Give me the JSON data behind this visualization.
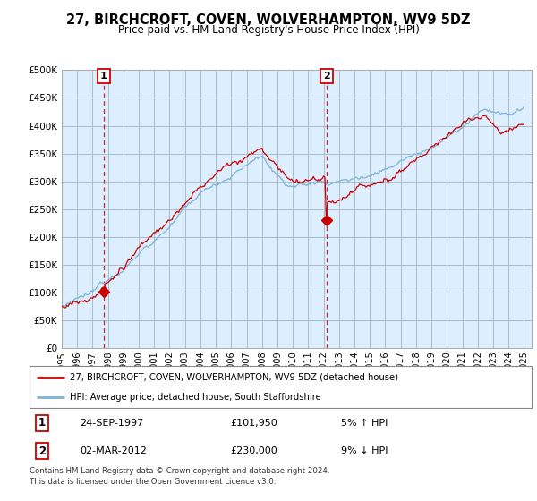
{
  "title": "27, BIRCHCROFT, COVEN, WOLVERHAMPTON, WV9 5DZ",
  "subtitle": "Price paid vs. HM Land Registry's House Price Index (HPI)",
  "legend_line1": "27, BIRCHCROFT, COVEN, WOLVERHAMPTON, WV9 5DZ (detached house)",
  "legend_line2": "HPI: Average price, detached house, South Staffordshire",
  "annotation1": {
    "label": "1",
    "date_str": "24-SEP-1997",
    "price_str": "£101,950",
    "pct_str": "5% ↑ HPI",
    "x_year": 1997.73,
    "y_val": 101950
  },
  "annotation2": {
    "label": "2",
    "date_str": "02-MAR-2012",
    "price_str": "£230,000",
    "pct_str": "9% ↓ HPI",
    "x_year": 2012.17,
    "y_val": 230000
  },
  "footnote": "Contains HM Land Registry data © Crown copyright and database right 2024.\nThis data is licensed under the Open Government Licence v3.0.",
  "price_color": "#cc0000",
  "hpi_color": "#7bb3d9",
  "annotation_color": "#cc0000",
  "chart_bg_color": "#ddeeff",
  "background_color": "#ffffff",
  "grid_color": "#aabbcc",
  "ylim": [
    0,
    500000
  ],
  "yticks": [
    0,
    50000,
    100000,
    150000,
    200000,
    250000,
    300000,
    350000,
    400000,
    450000,
    500000
  ],
  "ytick_labels": [
    "£0",
    "£50K",
    "£100K",
    "£150K",
    "£200K",
    "£250K",
    "£300K",
    "£350K",
    "£400K",
    "£450K",
    "£500K"
  ],
  "xlim_start": 1995.0,
  "xlim_end": 2025.5,
  "xtick_years": [
    1995,
    1996,
    1997,
    1998,
    1999,
    2000,
    2001,
    2002,
    2003,
    2004,
    2005,
    2006,
    2007,
    2008,
    2009,
    2010,
    2011,
    2012,
    2013,
    2014,
    2015,
    2016,
    2017,
    2018,
    2019,
    2020,
    2021,
    2022,
    2023,
    2024,
    2025
  ]
}
